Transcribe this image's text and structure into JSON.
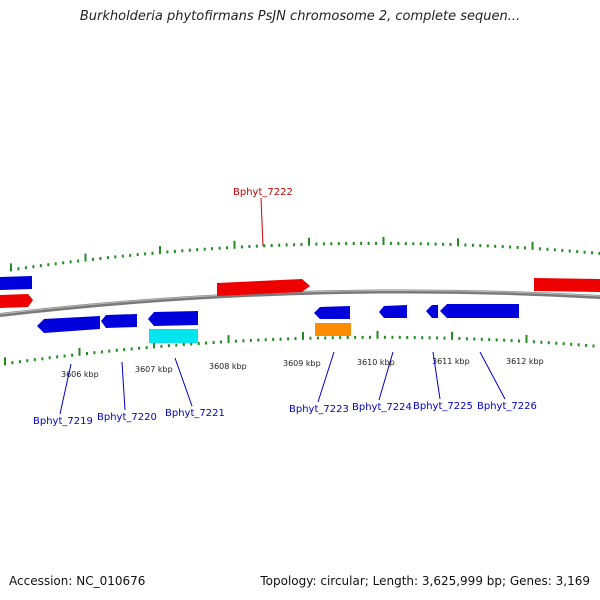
{
  "title": "Burkholderia phytofirmans PsJN chromosome 2, complete sequen...",
  "footer": {
    "accession": "Accession: NC_010676",
    "summary": "Topology: circular; Length: 3,625,999 bp; Genes: 3,169"
  },
  "colors": {
    "plus_strand_gene": "#ee0000",
    "minus_strand_gene": "#0000dd",
    "cyan_gene": "#00e5ee",
    "orange_gene": "#ff8c00",
    "tick": "#228b22",
    "backbone": "#888888",
    "label_minus": "#0000cc",
    "label_plus": "#cc0000"
  },
  "kbp_ticks": [
    "3606 kbp",
    "3607 kbp",
    "3608 kbp",
    "3609 kbp",
    "3610 kbp",
    "3611 kbp",
    "3612 kbp"
  ],
  "gene_labels": [
    {
      "name": "Bphyt_7222",
      "strand": "plus"
    },
    {
      "name": "Bphyt_7219",
      "strand": "minus"
    },
    {
      "name": "Bphyt_7220",
      "strand": "minus"
    },
    {
      "name": "Bphyt_7221",
      "strand": "minus"
    },
    {
      "name": "Bphyt_7223",
      "strand": "minus"
    },
    {
      "name": "Bphyt_7224",
      "strand": "minus"
    },
    {
      "name": "Bphyt_7225",
      "strand": "minus"
    },
    {
      "name": "Bphyt_7226",
      "strand": "minus"
    }
  ]
}
